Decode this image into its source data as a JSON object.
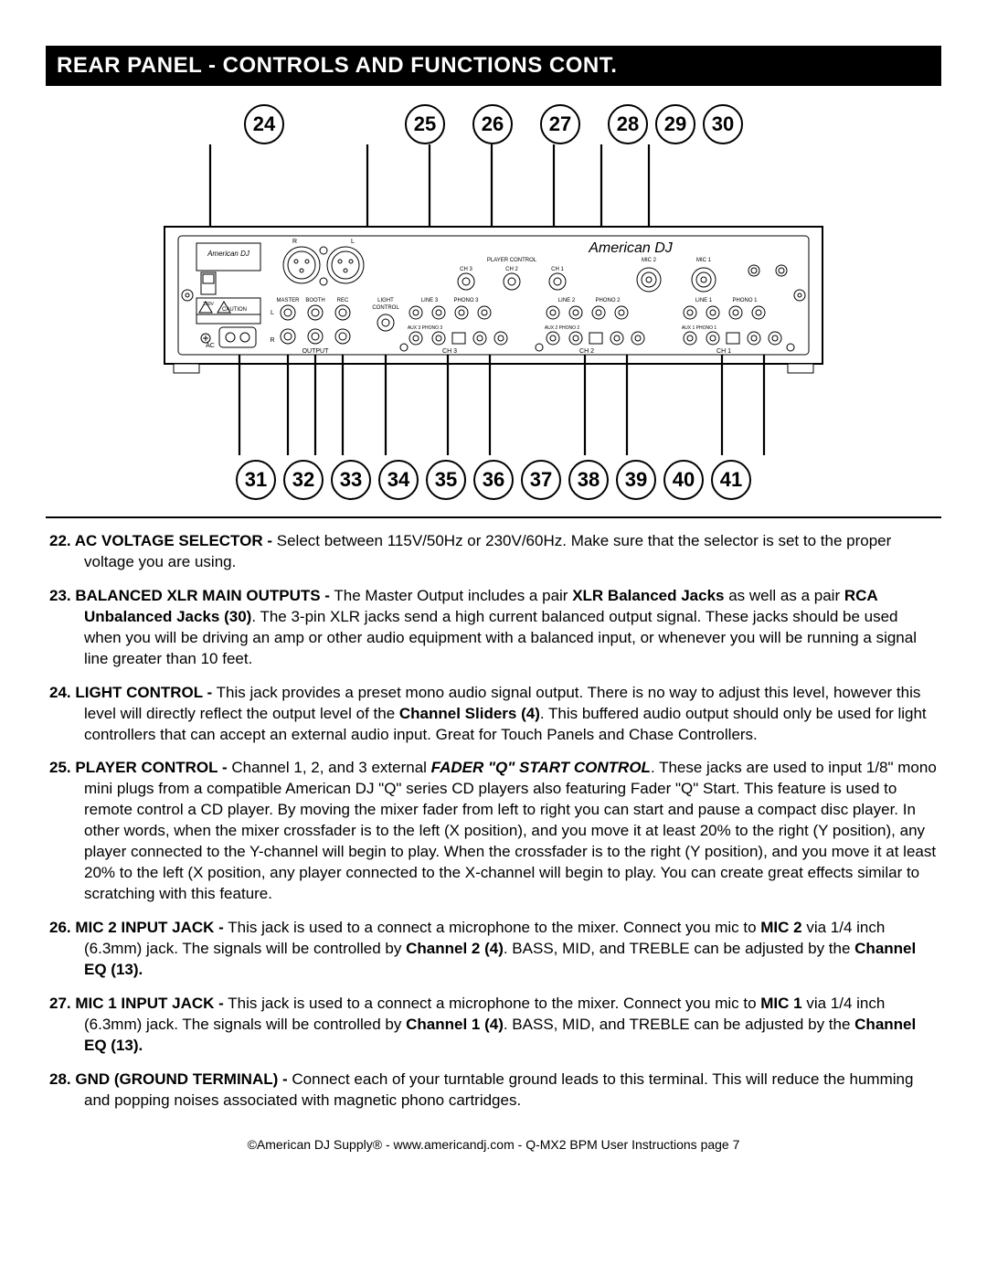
{
  "header": "REAR PANEL - CONTROLS AND FUNCTIONS CONT.",
  "callouts_top": [
    "24",
    "25",
    "26",
    "27",
    "28",
    "29",
    "30"
  ],
  "callouts_bot": [
    "31",
    "32",
    "33",
    "34",
    "35",
    "36",
    "37",
    "38",
    "39",
    "40",
    "41"
  ],
  "panel_labels": {
    "brand": "American DJ",
    "caution": "CAUTION",
    "master": "MASTER",
    "booth": "BOOTH",
    "rec": "REC",
    "output": "OUTPUT",
    "light": "LIGHT",
    "control": "CONTROL",
    "player_control": "PLAYER CONTROL",
    "ch1": "CH 1",
    "ch2": "CH 2",
    "ch3": "CH 3",
    "mic1": "MIC 1",
    "mic2": "MIC 2",
    "line1": "LINE 1",
    "line2": "LINE 2",
    "line3": "LINE 3",
    "phono1": "PHONO 1",
    "phono2": "PHONO 2",
    "phono3": "PHONO 3",
    "aux1": "AUX 1",
    "aux2": "AUX 2",
    "aux3": "AUX 3",
    "ac": "AC",
    "r": "R",
    "l": "L",
    "v230": "230V",
    "gnd": "GND"
  },
  "items": [
    {
      "num": "22.",
      "title": "AC VOLTAGE SELECTOR -",
      "body": " Select between 115V/50Hz or 230V/60Hz. Make sure that the selector is set to the proper voltage you are using."
    },
    {
      "num": "23.",
      "title": "BALANCED XLR MAIN OUTPUTS -",
      "body_html": " The Master Output includes a pair <span class='b'>XLR Balanced Jacks</span> as well as a pair <span class='b'>RCA Unbalanced Jacks (30)</span>. The 3-pin XLR jacks send a high current balanced output signal. These jacks should be used when you will be driving an amp or other audio equipment with a balanced input, or whenever you will be running a signal line greater than 10 feet."
    },
    {
      "num": "24.",
      "title": "LIGHT CONTROL -",
      "body_html": " This jack provides a preset mono audio signal output. There is no way to adjust this level, however this level will directly reflect the output level of the <span class='b'>Channel Sliders (4)</span>.  This buffered audio output should only be used for light controllers that can accept an external audio input. Great for Touch Panels and Chase Controllers."
    },
    {
      "num": "25.",
      "title": "PLAYER CONTROL -",
      "body_html": " Channel 1, 2, and 3 external <span class='bi'>FADER \"Q\" START CONTROL</span>. These jacks are used to input 1/8\" mono mini plugs from a compatible American DJ \"Q\" series CD players also featuring Fader \"Q\" Start. This feature is used to remote control a CD player. By moving the mixer fader from left to right you can start and pause a compact disc player. In other words, when the mixer crossfader is to the left (X position), and you move it at least 20% to the right (Y position), any player connected to the Y-channel will begin to play.  When the crossfader is to the right (Y position), and you move it at least 20% to the left (X position, any player connected to the X-channel will begin to play. You can create great effects similar to scratching with this feature."
    },
    {
      "num": "26.",
      "title": "MIC 2 INPUT JACK -",
      "body_html": " This jack is used to a connect a microphone to the mixer. Connect you mic to <span class='b'>MIC 2</span> via 1/4 inch (6.3mm) jack. The signals will be controlled by <span class='b'>Channel 2 (4)</span>. BASS, MID, and TREBLE can be adjusted by the <span class='b'>Channel EQ (13).</span>"
    },
    {
      "num": "27.",
      "title": "MIC 1 INPUT JACK -",
      "body_html": " This jack is used to a connect a microphone to the mixer. Connect you mic to <span class='b'>MIC 1</span> via 1/4 inch (6.3mm) jack. The signals will be controlled by <span class='b'>Channel 1 (4)</span>. BASS, MID, and TREBLE can be adjusted by the <span class='b'>Channel EQ (13).</span>"
    },
    {
      "num": "28.",
      "title": "GND (GROUND TERMINAL) -",
      "body": " Connect each of your turntable ground leads to this terminal. This will reduce the humming and popping noises associated with magnetic phono cartridges."
    }
  ],
  "footer": "©American DJ Supply® - www.americandj.com - Q-MX2 BPM  User Instructions page 7"
}
